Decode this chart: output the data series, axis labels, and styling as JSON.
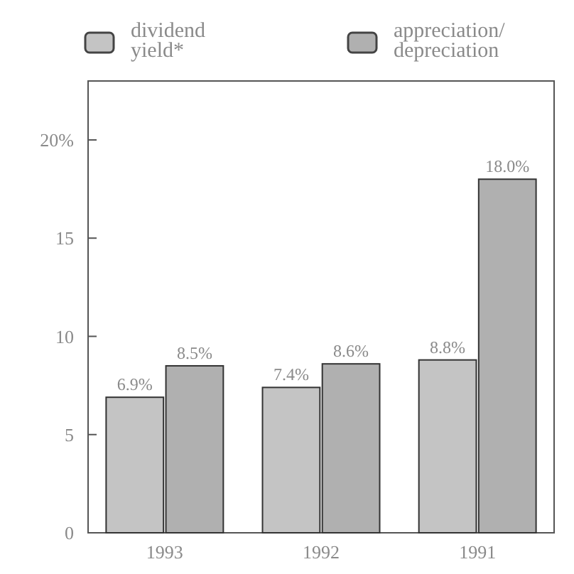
{
  "chart_data": {
    "type": "bar",
    "categories": [
      "1993",
      "1992",
      "1991"
    ],
    "series": [
      {
        "name": "dividend yield*",
        "color": "#c4c4c4",
        "values": [
          6.9,
          7.4,
          8.8
        ],
        "value_labels": [
          "6.9%",
          "7.4%",
          "8.8%"
        ]
      },
      {
        "name": "appreciation/ depreciation",
        "color": "#b0b0b0",
        "values": [
          8.5,
          8.6,
          18.0
        ],
        "value_labels": [
          "8.5%",
          "8.6%",
          "18.0%"
        ]
      }
    ],
    "ylim": [
      0,
      23
    ],
    "yticks": [
      0,
      5,
      10,
      15,
      {
        "value": 20,
        "label": "20%"
      }
    ],
    "grid": false,
    "legend": "top left"
  }
}
